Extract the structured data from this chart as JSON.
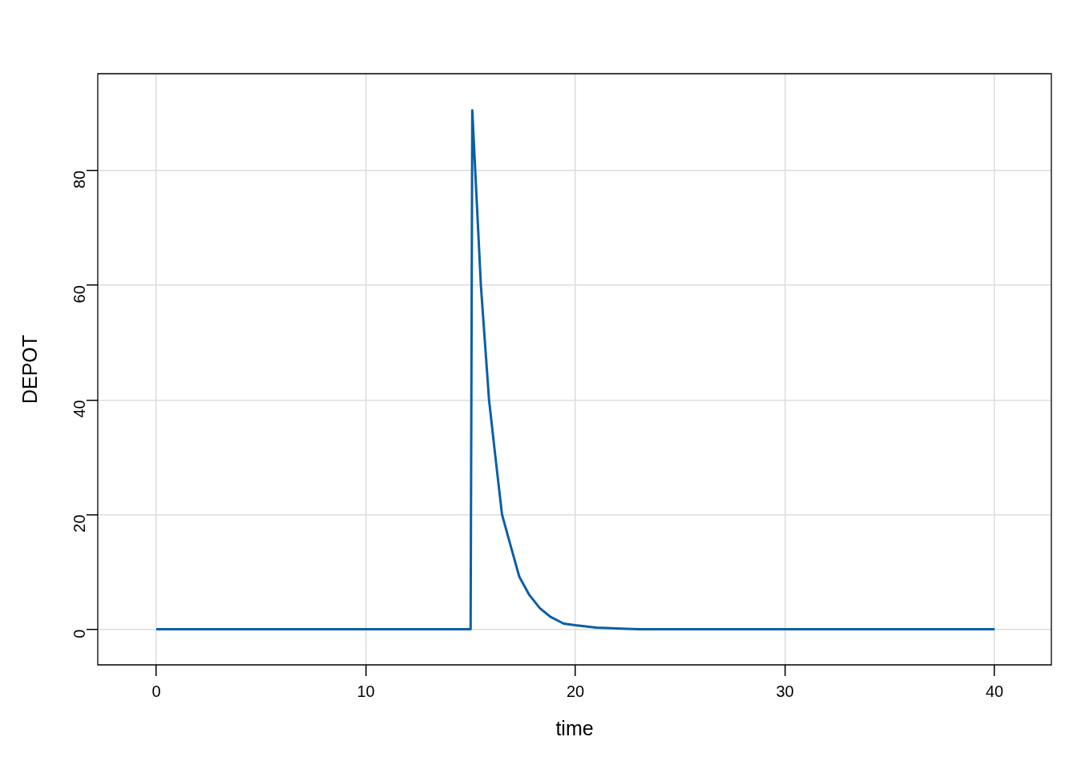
{
  "chart_data": {
    "type": "line",
    "xlabel": "time",
    "ylabel": "DEPOT",
    "xlim": [
      -2.79,
      42.71
    ],
    "ylim": [
      -6.2,
      96.9
    ],
    "xticks": [
      0,
      10,
      20,
      30,
      40
    ],
    "yticks": [
      0,
      20,
      40,
      60,
      80
    ],
    "grid": true,
    "legend": false,
    "marker": "none",
    "line_style": "solid",
    "series": [
      {
        "color": "#0a5fa8",
        "x": [
          0,
          15,
          15.08,
          15.49,
          15.88,
          16.2,
          16.5,
          16.9,
          17.32,
          17.8,
          18.3,
          18.8,
          19.44,
          20,
          21,
          23,
          40
        ],
        "values": [
          0,
          0,
          90.5,
          60,
          40,
          29.5,
          20,
          14.7,
          9.2,
          6.0,
          3.7,
          2.2,
          1.0,
          0.7,
          0.3,
          0,
          0
        ]
      }
    ]
  }
}
